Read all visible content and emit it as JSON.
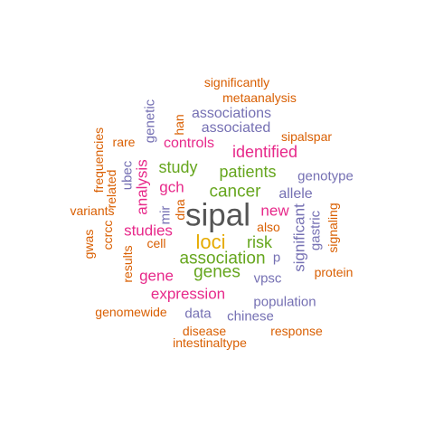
{
  "palette": {
    "dark": "#555555",
    "orange": "#D95F02",
    "purple": "#7570B3",
    "magenta": "#E7298A",
    "green": "#66A61E",
    "gold": "#E6AB02"
  },
  "words": [
    {
      "text": "sipal",
      "color": "dark",
      "weight": 10,
      "vertical": false
    },
    {
      "text": "loci",
      "color": "gold",
      "weight": 7,
      "vertical": false
    },
    {
      "text": "cancer",
      "color": "green",
      "weight": 6,
      "vertical": false
    },
    {
      "text": "association",
      "color": "green",
      "weight": 6,
      "vertical": false
    },
    {
      "text": "genes",
      "color": "green",
      "weight": 6,
      "vertical": false
    },
    {
      "text": "study",
      "color": "green",
      "weight": 6,
      "vertical": false
    },
    {
      "text": "patients",
      "color": "green",
      "weight": 6,
      "vertical": false
    },
    {
      "text": "risk",
      "color": "green",
      "weight": 6,
      "vertical": false
    },
    {
      "text": "identified",
      "color": "magenta",
      "weight": 5,
      "vertical": false
    },
    {
      "text": "new",
      "color": "magenta",
      "weight": 5,
      "vertical": false
    },
    {
      "text": "gch",
      "color": "magenta",
      "weight": 5,
      "vertical": false
    },
    {
      "text": "analysis",
      "color": "magenta",
      "weight": 5,
      "vertical": true
    },
    {
      "text": "expression",
      "color": "magenta",
      "weight": 5,
      "vertical": false
    },
    {
      "text": "studies",
      "color": "magenta",
      "weight": 5,
      "vertical": false
    },
    {
      "text": "gene",
      "color": "magenta",
      "weight": 5,
      "vertical": false
    },
    {
      "text": "controls",
      "color": "magenta",
      "weight": 5,
      "vertical": false
    },
    {
      "text": "significant",
      "color": "purple",
      "weight": 4,
      "vertical": true
    },
    {
      "text": "associations",
      "color": "purple",
      "weight": 4,
      "vertical": false
    },
    {
      "text": "associated",
      "color": "purple",
      "weight": 4,
      "vertical": false
    },
    {
      "text": "allele",
      "color": "purple",
      "weight": 4,
      "vertical": false
    },
    {
      "text": "gastric",
      "color": "purple",
      "weight": 4,
      "vertical": true
    },
    {
      "text": "population",
      "color": "purple",
      "weight": 4,
      "vertical": false
    },
    {
      "text": "chinese",
      "color": "purple",
      "weight": 4,
      "vertical": false
    },
    {
      "text": "data",
      "color": "purple",
      "weight": 4,
      "vertical": false
    },
    {
      "text": "genotype",
      "color": "purple",
      "weight": 4,
      "vertical": false
    },
    {
      "text": "vpsc",
      "color": "purple",
      "weight": 4,
      "vertical": false
    },
    {
      "text": "p",
      "color": "purple",
      "weight": 4,
      "vertical": false
    },
    {
      "text": "genetic",
      "color": "purple",
      "weight": 4,
      "vertical": true
    },
    {
      "text": "ubec",
      "color": "purple",
      "weight": 4,
      "vertical": true
    },
    {
      "text": "mir",
      "color": "purple",
      "weight": 4,
      "vertical": true
    },
    {
      "text": "significantly",
      "color": "orange",
      "weight": 3,
      "vertical": false
    },
    {
      "text": "metaanalysis",
      "color": "orange",
      "weight": 3,
      "vertical": false
    },
    {
      "text": "han",
      "color": "orange",
      "weight": 3,
      "vertical": true
    },
    {
      "text": "sipalspar",
      "color": "orange",
      "weight": 3,
      "vertical": false
    },
    {
      "text": "rare",
      "color": "orange",
      "weight": 3,
      "vertical": false
    },
    {
      "text": "frequencies",
      "color": "orange",
      "weight": 3,
      "vertical": true
    },
    {
      "text": "related",
      "color": "orange",
      "weight": 3,
      "vertical": true
    },
    {
      "text": "variants",
      "color": "orange",
      "weight": 3,
      "vertical": false
    },
    {
      "text": "ccrcc",
      "color": "orange",
      "weight": 3,
      "vertical": true
    },
    {
      "text": "gwas",
      "color": "orange",
      "weight": 3,
      "vertical": true
    },
    {
      "text": "results",
      "color": "orange",
      "weight": 3,
      "vertical": true
    },
    {
      "text": "cell",
      "color": "orange",
      "weight": 3,
      "vertical": false
    },
    {
      "text": "dna",
      "color": "orange",
      "weight": 3,
      "vertical": true
    },
    {
      "text": "also",
      "color": "orange",
      "weight": 3,
      "vertical": false
    },
    {
      "text": "signaling",
      "color": "orange",
      "weight": 3,
      "vertical": true
    },
    {
      "text": "protein",
      "color": "orange",
      "weight": 3,
      "vertical": false
    },
    {
      "text": "genomewide",
      "color": "orange",
      "weight": 3,
      "vertical": false
    },
    {
      "text": "disease",
      "color": "orange",
      "weight": 3,
      "vertical": false
    },
    {
      "text": "response",
      "color": "orange",
      "weight": 3,
      "vertical": false
    },
    {
      "text": "intestinaltype",
      "color": "orange",
      "weight": 3,
      "vertical": false
    }
  ]
}
